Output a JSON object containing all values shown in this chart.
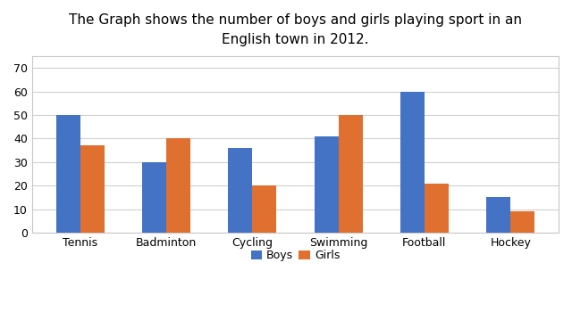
{
  "title": "The Graph shows the number of boys and girls playing sport in an\nEnglish town in 2012.",
  "categories": [
    "Tennis",
    "Badminton",
    "Cycling",
    "Swimming",
    "Football",
    "Hockey"
  ],
  "boys": [
    50,
    30,
    36,
    41,
    60,
    15
  ],
  "girls": [
    37,
    40,
    20,
    50,
    21,
    9
  ],
  "boys_color": "#4472C4",
  "girls_color": "#E07030",
  "ylim": [
    0,
    75
  ],
  "yticks": [
    0,
    10,
    20,
    30,
    40,
    50,
    60,
    70
  ],
  "ylabel": "",
  "xlabel": "",
  "legend_labels": [
    "Boys",
    "Girls"
  ],
  "bar_width": 0.28,
  "background_color": "#ffffff",
  "grid_color": "#d0d0d0",
  "title_fontsize": 11,
  "tick_fontsize": 9,
  "legend_fontsize": 9,
  "border_color": "#c8c8c8"
}
